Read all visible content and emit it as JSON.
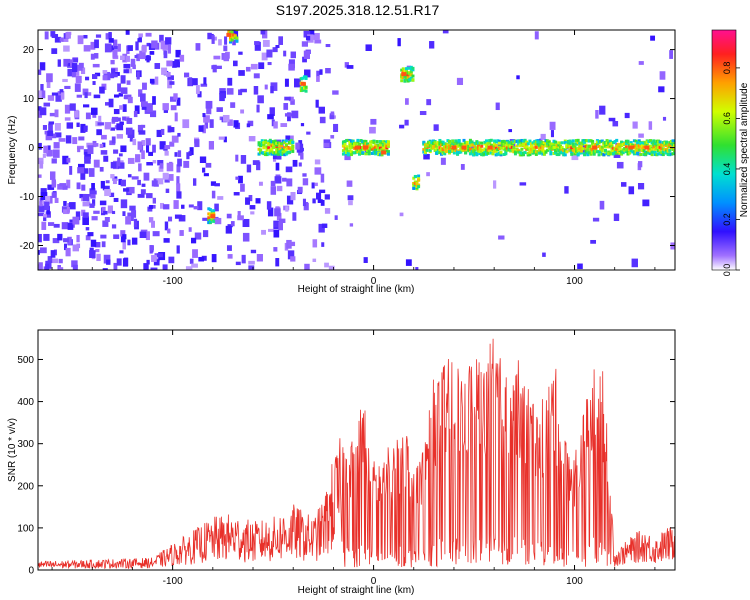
{
  "title": "S197.2025.318.12.51.R17",
  "colors": {
    "snr_line": "#e8302a",
    "axis": "#000000"
  },
  "chart_data": [
    {
      "type": "heatmap",
      "xlabel": "Height of straight line (km)",
      "ylabel": "Frequency (Hz)",
      "xlim": [
        -167,
        150
      ],
      "ylim": [
        -25,
        24
      ],
      "xticks": [
        -100,
        0,
        100
      ],
      "yticks": [
        -20,
        -10,
        0,
        10,
        20
      ],
      "colorbar": {
        "label": "Normalized spectral amplitude",
        "range": [
          0,
          0.95
        ],
        "ticks": [
          0.0,
          0.2,
          0.4,
          0.6,
          0.8
        ]
      },
      "strong_features": [
        {
          "x_range": [
            -15,
            8
          ],
          "freq": 0
        },
        {
          "x_range": [
            14,
            20
          ],
          "freq": 15
        },
        {
          "x_range": [
            25,
            150
          ],
          "freq": 0
        },
        {
          "x_range": [
            -57,
            -40
          ],
          "freq": 0
        },
        {
          "x_range": [
            -72,
            -68
          ],
          "freq": 23
        },
        {
          "x_range": [
            -36,
            -33
          ],
          "freq": 13
        },
        {
          "x_range": [
            -82,
            -79
          ],
          "freq": -14
        },
        {
          "x_range": [
            20,
            23
          ],
          "freq": -7
        }
      ]
    },
    {
      "type": "line",
      "xlabel": "Height of straight line (km)",
      "ylabel": "SNR (10 * v/v)",
      "xlim": [
        -167,
        150
      ],
      "ylim": [
        0,
        570
      ],
      "xticks": [
        -100,
        0,
        100
      ],
      "yticks": [
        0,
        100,
        200,
        300,
        400,
        500
      ],
      "series": [
        {
          "name": "SNR",
          "x": [
            -167,
            -150,
            -130,
            -110,
            -100,
            -90,
            -80,
            -70,
            -60,
            -50,
            -40,
            -30,
            -25,
            -20,
            -15,
            -10,
            -5,
            0,
            5,
            10,
            15,
            20,
            25,
            30,
            35,
            40,
            45,
            50,
            55,
            60,
            65,
            70,
            75,
            80,
            85,
            90,
            95,
            100,
            105,
            110,
            115,
            120,
            125,
            130,
            135,
            140,
            145,
            150
          ],
          "y": [
            20,
            22,
            25,
            28,
            60,
            90,
            120,
            130,
            110,
            120,
            150,
            120,
            160,
            260,
            320,
            300,
            410,
            250,
            270,
            290,
            350,
            260,
            290,
            440,
            470,
            490,
            460,
            500,
            480,
            550,
            440,
            500,
            440,
            400,
            390,
            480,
            320,
            270,
            370,
            480,
            450,
            40,
            60,
            80,
            90,
            70,
            90,
            100
          ]
        }
      ]
    }
  ]
}
